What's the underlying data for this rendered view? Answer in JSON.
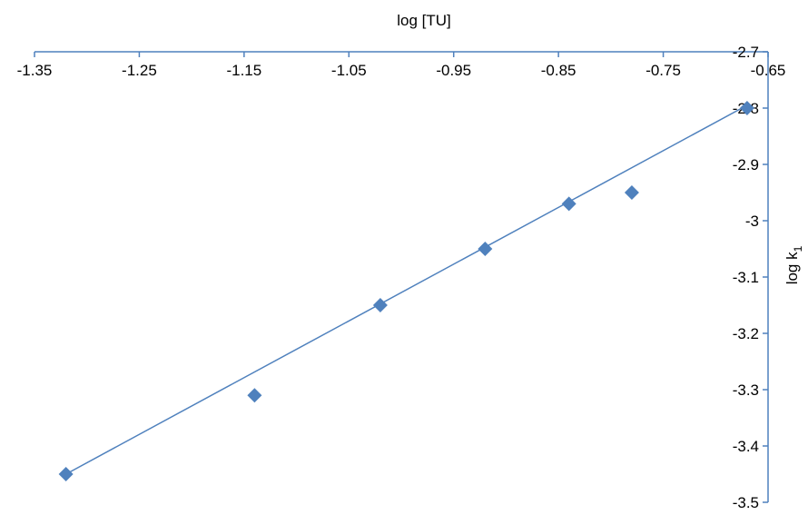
{
  "chart_data": {
    "type": "scatter",
    "title": "",
    "xlabel": "log [TU]",
    "ylabel_main": "log k",
    "ylabel_sub": "1",
    "x_ticks": [
      "-1.35",
      "-1.25",
      "-1.15",
      "-1.05",
      "-0.95",
      "-0.85",
      "-0.75",
      "-0.65"
    ],
    "y_ticks": [
      "-2.7",
      "-2.8",
      "-2.9",
      "-3",
      "-3.1",
      "-3.2",
      "-3.3",
      "-3.4",
      "-3.5"
    ],
    "xlim": [
      -1.35,
      -0.65
    ],
    "ylim": [
      -3.5,
      -2.7
    ],
    "x_axis_position": "top",
    "y_axis_position": "right",
    "grid": false,
    "legend": "none",
    "series": [
      {
        "marker": "diamond",
        "color": "#4F81BD",
        "points": [
          {
            "x": -1.32,
            "y": -3.45
          },
          {
            "x": -1.14,
            "y": -3.31
          },
          {
            "x": -1.02,
            "y": -3.15
          },
          {
            "x": -0.92,
            "y": -3.05
          },
          {
            "x": -0.84,
            "y": -2.97
          },
          {
            "x": -0.78,
            "y": -2.95
          },
          {
            "x": -0.67,
            "y": -2.8
          }
        ]
      }
    ],
    "trendline": {
      "type": "linear",
      "color": "#4F81BD",
      "x_range": [
        -1.32,
        -0.67
      ],
      "y_range": [
        -3.45,
        -2.795
      ]
    }
  }
}
